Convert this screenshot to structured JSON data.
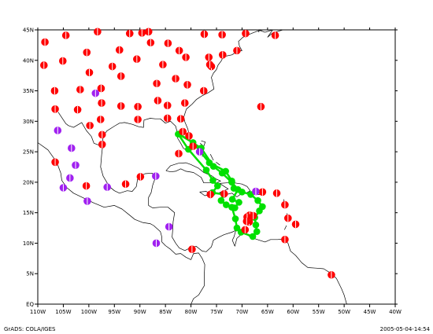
{
  "footer": {
    "left": "GrADS: COLA/IGES",
    "right": "2005-05-04-14:54"
  },
  "axes": {
    "lon_range": [
      -110,
      -40
    ],
    "lat_range": [
      0,
      45
    ],
    "x_ticks": [
      "110W",
      "105W",
      "100W",
      "95W",
      "90W",
      "85W",
      "80W",
      "75W",
      "70W",
      "65W",
      "60W",
      "55W",
      "50W",
      "45W",
      "40W"
    ],
    "y_ticks": [
      "EQ",
      "5N",
      "10N",
      "15N",
      "20N",
      "25N",
      "30N",
      "35N",
      "40N",
      "45N"
    ]
  },
  "colors": {
    "red": "#ff0000",
    "purple": "#a020f0",
    "green": "#00e000",
    "coast": "#000000"
  },
  "stations_red": [
    [
      -108.6,
      43.0
    ],
    [
      -104.5,
      44.1
    ],
    [
      -98.3,
      44.7
    ],
    [
      -92.0,
      44.4
    ],
    [
      -94.0,
      41.7
    ],
    [
      -100.4,
      41.3
    ],
    [
      -105.1,
      39.9
    ],
    [
      -108.8,
      39.2
    ],
    [
      -89.6,
      44.5
    ],
    [
      -88.3,
      44.7
    ],
    [
      -87.9,
      42.9
    ],
    [
      -84.5,
      42.8
    ],
    [
      -77.4,
      44.3
    ],
    [
      -73.9,
      44.2
    ],
    [
      -69.3,
      44.4
    ],
    [
      -63.5,
      44.1
    ],
    [
      -71.0,
      41.6
    ],
    [
      -73.8,
      40.9
    ],
    [
      -76.5,
      40.5
    ],
    [
      -76.0,
      39.0
    ],
    [
      -81.0,
      40.5
    ],
    [
      -85.5,
      39.3
    ],
    [
      -90.6,
      40.2
    ],
    [
      -95.4,
      39.0
    ],
    [
      -99.9,
      38.0
    ],
    [
      -93.7,
      37.4
    ],
    [
      -86.7,
      36.2
    ],
    [
      -83.0,
      37.0
    ],
    [
      -80.7,
      36.0
    ],
    [
      -77.5,
      35.0
    ],
    [
      -81.2,
      33.0
    ],
    [
      -84.6,
      32.6
    ],
    [
      -86.5,
      33.4
    ],
    [
      -90.4,
      32.4
    ],
    [
      -93.7,
      32.5
    ],
    [
      -97.5,
      33.0
    ],
    [
      -101.7,
      35.2
    ],
    [
      -106.7,
      35.0
    ],
    [
      -102.2,
      31.9
    ],
    [
      -106.6,
      32.0
    ],
    [
      -97.7,
      30.3
    ],
    [
      -90.4,
      30.3
    ],
    [
      -84.6,
      30.5
    ],
    [
      -82.0,
      30.4
    ],
    [
      -99.8,
      29.3
    ],
    [
      -97.4,
      27.8
    ],
    [
      -97.4,
      26.2
    ],
    [
      -80.4,
      27.6
    ],
    [
      -79.6,
      25.9
    ],
    [
      -82.4,
      24.7
    ],
    [
      -106.6,
      23.3
    ],
    [
      -100.5,
      19.4
    ],
    [
      -92.8,
      19.7
    ],
    [
      -89.9,
      20.9
    ],
    [
      -76.2,
      18.0
    ],
    [
      -66.0,
      18.4
    ],
    [
      -63.2,
      18.2
    ],
    [
      -61.6,
      16.3
    ],
    [
      -61.0,
      14.1
    ],
    [
      -59.5,
      13.1
    ],
    [
      -61.6,
      10.6
    ],
    [
      -69.4,
      12.2
    ],
    [
      -79.8,
      9.0
    ],
    [
      -52.5,
      4.8
    ],
    [
      -68.6,
      13.5
    ],
    [
      -68.5,
      14.2
    ],
    [
      -68.5,
      14.6
    ],
    [
      -67.8,
      14.5
    ],
    [
      -69.0,
      14.3
    ],
    [
      -69.1,
      13.6
    ],
    [
      -73.5,
      18.1
    ],
    [
      -66.3,
      32.4
    ],
    [
      -76.3,
      39.3
    ],
    [
      -82.3,
      41.6
    ],
    [
      -97.6,
      35.4
    ],
    [
      -81.6,
      28.3
    ]
  ],
  "stations_purple": [
    [
      -106.1,
      28.5
    ],
    [
      -103.4,
      25.6
    ],
    [
      -102.6,
      22.8
    ],
    [
      -103.7,
      20.7
    ],
    [
      -105.0,
      19.1
    ],
    [
      -100.3,
      16.9
    ],
    [
      -96.4,
      19.2
    ],
    [
      -86.9,
      21.0
    ],
    [
      -78.3,
      25.0
    ],
    [
      -84.3,
      12.7
    ],
    [
      -86.8,
      10.0
    ],
    [
      -67.3,
      18.5
    ],
    [
      -98.7,
      34.6
    ]
  ],
  "track": [
    [
      -82.3,
      27.9
    ],
    [
      -78.0,
      25.6
    ],
    [
      -75.6,
      22.6
    ],
    [
      -73.9,
      21.5
    ],
    [
      -72.0,
      20.0
    ],
    [
      -70.8,
      18.8
    ],
    [
      -71.9,
      17.2
    ],
    [
      -70.6,
      16.7
    ],
    [
      -71.4,
      15.8
    ],
    [
      -73.1,
      16.3
    ],
    [
      -74.1,
      17.0
    ],
    [
      -73.6,
      18.0
    ],
    [
      -75.8,
      18.3
    ],
    [
      -74.8,
      19.4
    ],
    [
      -75.7,
      20.3
    ],
    [
      -77.0,
      22.0
    ],
    [
      -80.5,
      25.4
    ],
    [
      -82.5,
      27.9
    ],
    [
      -79.6,
      26.5
    ],
    [
      -76.4,
      23.2
    ],
    [
      -73.2,
      21.8
    ],
    [
      -72.0,
      20.2
    ],
    [
      -71.6,
      19.0
    ],
    [
      -70.0,
      18.4
    ],
    [
      -68.3,
      18.0
    ],
    [
      -66.9,
      17.0
    ],
    [
      -66.0,
      16.0
    ],
    [
      -66.6,
      15.3
    ],
    [
      -67.5,
      14.2
    ],
    [
      -67.3,
      13.0
    ],
    [
      -67.1,
      11.9
    ],
    [
      -67.9,
      11.1
    ],
    [
      -70.2,
      11.8
    ],
    [
      -71.0,
      12.5
    ],
    [
      -71.3,
      14.0
    ],
    [
      -72.0,
      15.9
    ]
  ]
}
